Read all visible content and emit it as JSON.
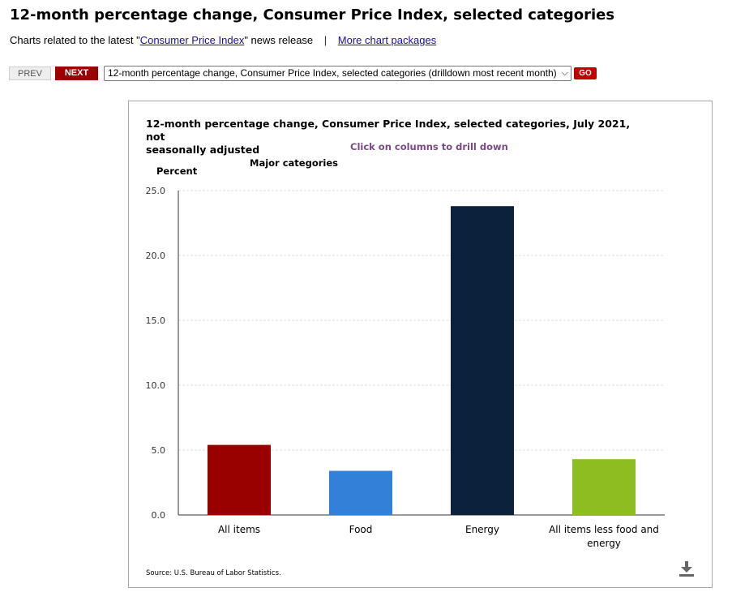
{
  "page": {
    "title": "12-month percentage change, Consumer Price Index, selected categories",
    "related_prefix": "Charts related to the latest \"",
    "related_link": "Consumer Price Index",
    "related_suffix": "\" news release",
    "separator": "|",
    "more_link": "More chart packages"
  },
  "nav": {
    "prev_label": "PREV",
    "next_label": "NEXT",
    "select_value": "12-month percentage change, Consumer Price Index, selected categories (drilldown most recent month)",
    "go_label": "GO"
  },
  "chart": {
    "title_line1": "12-month percentage change, Consumer Price Index, selected categories, July 2021, not",
    "title_line2": "seasonally adjusted",
    "drill_note": "Click on columns to drill down",
    "source": "Source: U.S. Bureau of Labor Statistics."
  },
  "chart_data": {
    "type": "bar",
    "title": "12-month percentage change, Consumer Price Index, selected categories, July 2021, not seasonally adjusted",
    "ylabel": "Percent",
    "xlabel": "",
    "series": [
      {
        "name": "Major categories",
        "values": [
          5.4,
          3.4,
          23.8,
          4.3
        ],
        "colors": [
          "#990000",
          "#3380d8",
          "#0c223c",
          "#8ebd22"
        ]
      }
    ],
    "categories": [
      "All items",
      "Food",
      "Energy",
      "All items less food and energy"
    ],
    "category_lines": [
      [
        "All items"
      ],
      [
        "Food"
      ],
      [
        "Energy"
      ],
      [
        "All items less food and",
        "energy"
      ]
    ],
    "ylim": [
      0,
      25
    ],
    "yticks": [
      "0.0",
      "5.0",
      "10.0",
      "15.0",
      "20.0",
      "25.0"
    ],
    "ytick_values": [
      0,
      5,
      10,
      15,
      20,
      25
    ],
    "grid": true,
    "gridline_color": "#dddddd",
    "axis_color": "#333333"
  }
}
